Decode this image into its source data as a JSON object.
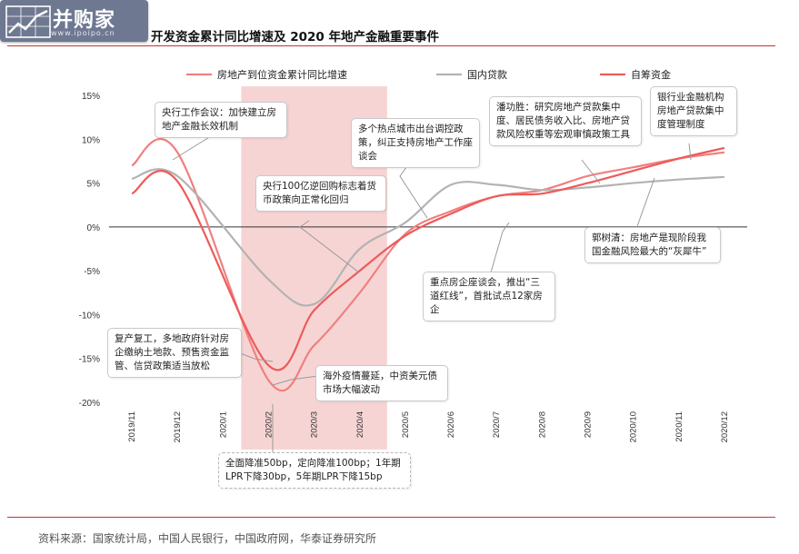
{
  "logo": {
    "brand": "并购家",
    "site": "www.ipoipo.cn"
  },
  "title": "开发资金累计同比增速及 2020 年地产金融重要事件",
  "source": "资料来源：国家统计局，中国人民银行，中国政府网，华泰证券研究所",
  "colors": {
    "rule": "#c83232",
    "shade": "#f7d4d4"
  },
  "chart_data": {
    "type": "line",
    "categories": [
      "2019/11",
      "2019/12",
      "2020/1",
      "2020/2",
      "2020/3",
      "2020/4",
      "2020/5",
      "2020/6",
      "2020/7",
      "2020/8",
      "2020/9",
      "2020/10",
      "2020/11",
      "2020/12"
    ],
    "y_ticks": [
      "15%",
      "10%",
      "5%",
      "0%",
      "-5%",
      "-10%",
      "-15%",
      "-20%"
    ],
    "ylim": [
      -20,
      15
    ],
    "shaded_range": [
      "2020/2",
      "2020/4"
    ],
    "series": [
      {
        "name": "房地产到位资金累计同比增速",
        "color": "#f08080",
        "values": [
          7.0,
          8.5,
          null,
          -17.5,
          -13.5,
          -7.5,
          -0.8,
          1.8,
          3.5,
          4.2,
          5.8,
          6.8,
          7.8,
          8.5
        ]
      },
      {
        "name": "国内贷款",
        "color": "#b3b3b3",
        "values": [
          5.5,
          5.8,
          null,
          -6.0,
          -8.8,
          -2.5,
          0.5,
          4.8,
          4.8,
          4.2,
          4.5,
          5.0,
          5.4,
          5.7
        ]
      },
      {
        "name": "自筹资金",
        "color": "#ee5a5a",
        "values": [
          3.8,
          5.2,
          null,
          -15.8,
          -9.5,
          -5.0,
          -1.0,
          1.5,
          3.5,
          3.8,
          5.0,
          6.4,
          7.8,
          9.0
        ]
      }
    ],
    "annotations": [
      {
        "id": "a1",
        "text": "央行工作会议：加快建立房地产金融长效机制"
      },
      {
        "id": "a2",
        "text": "央行100亿逆回购标志着货币政策向正常化回归"
      },
      {
        "id": "a3",
        "text": "多个热点城市出台调控政策，纠正支持房地产工作座谈会"
      },
      {
        "id": "a4",
        "text": "潘功胜：研究房地产贷款集中度、居民债务收入比、房地产贷款风险权重等宏观审慎政策工具"
      },
      {
        "id": "a5",
        "text": "银行业金融机构房地产贷款集中度管理制度"
      },
      {
        "id": "a6",
        "text": "郭树清：房地产是现阶段我国金融风险最大的“灰犀牛”"
      },
      {
        "id": "a7",
        "text": "重点房企座谈会，推出“三道红线”，首批试点12家房企"
      },
      {
        "id": "a8",
        "text": "复产复工，多地政府针对房企缴纳土地款、预售资金监管、信贷政策适当放松"
      },
      {
        "id": "a9",
        "text": "海外疫情蔓延，中资美元债市场大幅波动"
      },
      {
        "id": "a10",
        "text": "全面降准50bp，定向降准100bp；1年期LPR下降30bp，5年期LPR下降15bp"
      }
    ]
  }
}
